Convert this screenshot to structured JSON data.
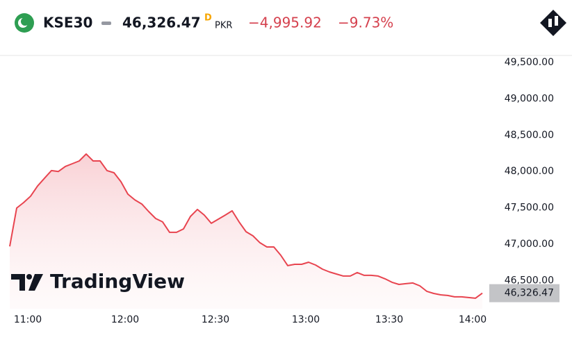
{
  "chart_data": {
    "type": "area",
    "header": {
      "symbol": "KSE30",
      "price": "46,326.47",
      "price_suffix": "D",
      "currency": "PKR",
      "change": "−4,995.92",
      "change_pct": "−9.73%"
    },
    "watermark": "TradingView",
    "color": "#e8444f",
    "categories": [
      null,
      null,
      null,
      "11:00",
      null,
      null,
      null,
      null,
      null,
      null,
      null,
      null,
      null,
      null,
      null,
      null,
      null,
      "12:00",
      null,
      null,
      null,
      null,
      null,
      null,
      null,
      null,
      null,
      null,
      null,
      null,
      "12:30",
      null,
      null,
      null,
      null,
      null,
      null,
      null,
      null,
      null,
      null,
      null,
      null,
      "13:00",
      null,
      null,
      null,
      null,
      null,
      null,
      null,
      null,
      null,
      null,
      null,
      "13:30",
      null,
      null,
      null,
      null,
      null,
      null,
      null,
      null,
      null,
      null,
      null,
      "14:00",
      null
    ],
    "values": [
      46970,
      47497,
      47573,
      47660,
      47800,
      47907,
      48012,
      48000,
      48070,
      48107,
      48145,
      48240,
      48145,
      48145,
      48012,
      47983,
      47860,
      47688,
      47610,
      47553,
      47449,
      47353,
      47306,
      47163,
      47163,
      47210,
      47382,
      47478,
      47400,
      47287,
      47344,
      47400,
      47459,
      47306,
      47172,
      47115,
      47020,
      46962,
      46962,
      46848,
      46705,
      46724,
      46724,
      46752,
      46714,
      46657,
      46619,
      46590,
      46562,
      46562,
      46610,
      46572,
      46572,
      46562,
      46524,
      46476,
      46447,
      46457,
      46467,
      46428,
      46352,
      46323,
      46304,
      46295,
      46276,
      46276,
      46267,
      46257,
      46326.47
    ],
    "ylim": [
      46113,
      49576
    ],
    "yticks": [
      {
        "value": 46500,
        "label": "46,500.00"
      },
      {
        "value": 47000,
        "label": "47,000.00"
      },
      {
        "value": 47500,
        "label": "47,500.00"
      },
      {
        "value": 48000,
        "label": "48,000.00"
      },
      {
        "value": 48500,
        "label": "48,500.00"
      },
      {
        "value": 49000,
        "label": "49,000.00"
      },
      {
        "value": 49500,
        "label": "49,500.00"
      }
    ]
  }
}
